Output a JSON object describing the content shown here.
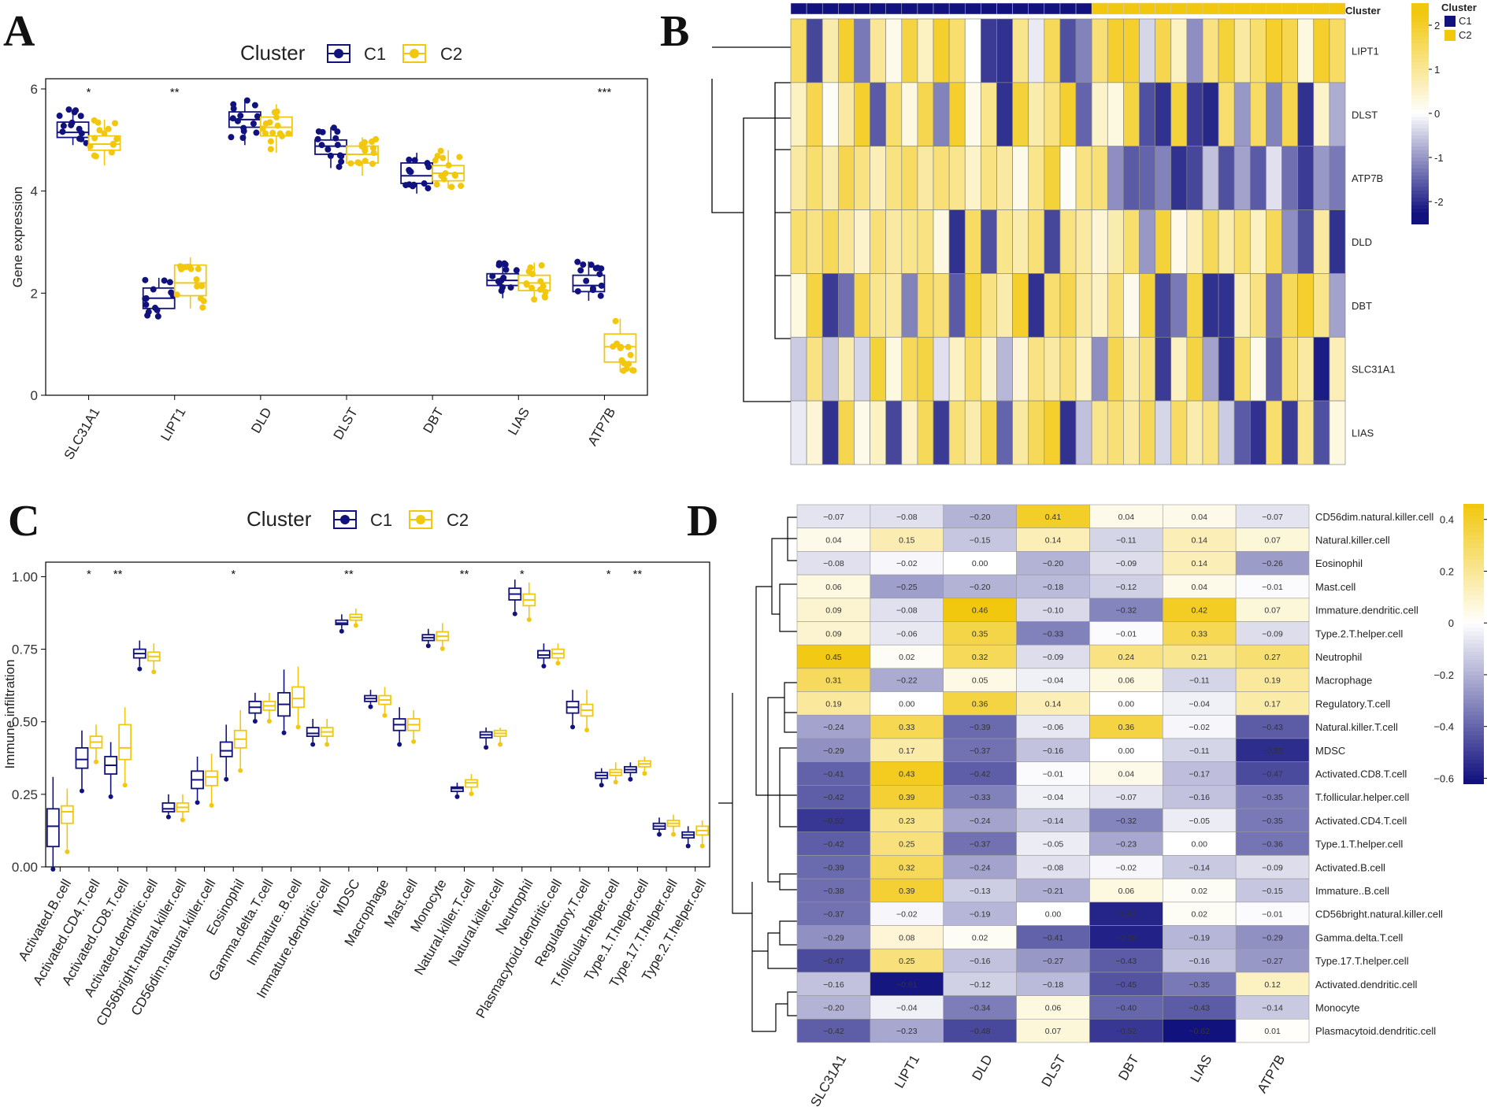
{
  "panels": {
    "A": "A",
    "B": "B",
    "C": "C",
    "D": "D"
  },
  "colors": {
    "c1": "#12127f",
    "c2": "#f2c80f",
    "white": "#ffffff"
  },
  "chart_data": [
    {
      "id": "A",
      "type": "boxplot",
      "legend_title": "Cluster",
      "legend": [
        "C1",
        "C2"
      ],
      "ylabel": "Gene expression",
      "ylim": [
        0,
        6.2
      ],
      "yticks": [
        0,
        2,
        4,
        6
      ],
      "categories": [
        "SLC31A1",
        "LIPT1",
        "DLD",
        "DLST",
        "DBT",
        "LIAS",
        "ATP7B"
      ],
      "significance": [
        "*",
        "**",
        "",
        "",
        "",
        "",
        "***"
      ],
      "series": [
        {
          "name": "C1",
          "stats": [
            [
              4.9,
              5.05,
              5.15,
              5.35,
              5.6
            ],
            [
              1.5,
              1.7,
              1.9,
              2.1,
              2.3
            ],
            [
              4.9,
              5.25,
              5.4,
              5.55,
              5.8
            ],
            [
              4.45,
              4.72,
              4.88,
              5.0,
              5.25
            ],
            [
              3.95,
              4.15,
              4.3,
              4.55,
              4.75
            ],
            [
              1.9,
              2.15,
              2.25,
              2.38,
              2.6
            ],
            [
              1.85,
              2.03,
              2.15,
              2.35,
              2.62
            ]
          ]
        },
        {
          "name": "C2",
          "stats": [
            [
              4.5,
              4.8,
              4.92,
              5.08,
              5.4
            ],
            [
              1.7,
              1.95,
              2.2,
              2.55,
              2.7
            ],
            [
              4.75,
              5.08,
              5.25,
              5.45,
              5.7
            ],
            [
              4.3,
              4.55,
              4.72,
              4.88,
              5.05
            ],
            [
              4.05,
              4.2,
              4.35,
              4.5,
              4.8
            ],
            [
              1.85,
              2.05,
              2.2,
              2.35,
              2.6
            ],
            [
              0.45,
              0.65,
              0.95,
              1.2,
              1.5
            ]
          ]
        }
      ]
    },
    {
      "id": "B",
      "type": "heatmap",
      "annotation_label": "Cluster",
      "legend_title": "Cluster",
      "legend": [
        "C1",
        "C2"
      ],
      "colorbar_ticks": [
        2,
        1,
        0,
        -1,
        -2
      ],
      "colorbar_range": [
        -2.5,
        2.5
      ],
      "rows": [
        "LIPT1",
        "DLST",
        "ATP7B",
        "DLD",
        "DBT",
        "SLC31A1",
        "LIAS"
      ],
      "n_c1": 19,
      "n_c2": 16,
      "values": [
        [
          1.5,
          -1.8,
          0.8,
          2,
          -1.3,
          1,
          0.2,
          1.8,
          0.6,
          2,
          1.4,
          0,
          -1.9,
          -2,
          1.1,
          -0.2,
          1.6,
          -1.7,
          -1.2,
          1.3,
          2,
          2,
          -0.4,
          1.7,
          0.6,
          -1.1,
          1.2,
          1.9,
          0.9,
          1.4,
          2,
          1.7,
          0.3,
          2,
          1.5
        ],
        [
          0.6,
          1.7,
          0.1,
          0.9,
          2,
          -1.6,
          1.4,
          0.3,
          1.7,
          -1.2,
          2,
          0.2,
          1.1,
          -2,
          1.9,
          0.8,
          1.2,
          2,
          -1.5,
          0.5,
          0.3,
          1.8,
          -1.7,
          -2,
          1.9,
          -1.9,
          -2.1,
          1.4,
          -1,
          1.5,
          -1.2,
          1.7,
          -2,
          0.5,
          -0.8
        ],
        [
          0.9,
          1.4,
          0.8,
          1.7,
          1.2,
          0.7,
          1.2,
          1.5,
          0.9,
          1.3,
          1.1,
          0.5,
          1.2,
          0.9,
          0.2,
          1.1,
          1.9,
          0.1,
          1.2,
          1.3,
          -1.1,
          -1.6,
          -1.5,
          -1.2,
          -2,
          -1.8,
          -0.6,
          -1.7,
          -0.9,
          -1.6,
          -0.3,
          -1.4,
          -1.9,
          -1,
          -1.3
        ],
        [
          1.4,
          1.2,
          1.6,
          1,
          0.5,
          1.3,
          0.9,
          1.1,
          1.2,
          0.3,
          -2,
          1.5,
          -1.7,
          1.1,
          0.8,
          1.3,
          -1.8,
          1.2,
          0.9,
          0.4,
          0.8,
          1.4,
          -1,
          1.9,
          0.2,
          0.7,
          1.6,
          0.8,
          1.4,
          0.6,
          1.6,
          -1.1,
          -1.7,
          0.9,
          -2
        ],
        [
          0.3,
          1.8,
          -1.9,
          -1.4,
          1.7,
          1.1,
          0.9,
          -1.2,
          1.5,
          1.3,
          -1.6,
          1.9,
          1.2,
          0.8,
          2,
          -2,
          1.4,
          1.7,
          0.9,
          0.6,
          1.3,
          0.2,
          1.9,
          -1.8,
          -1.3,
          1.8,
          -2,
          -2,
          0.7,
          1.2,
          -1.4,
          1.6,
          2,
          1.1,
          -0.9
        ],
        [
          -0.5,
          1.2,
          -0.6,
          0.8,
          -0.4,
          1.9,
          0.3,
          1.6,
          1.8,
          -0.3,
          0.6,
          1.4,
          0.5,
          -0.7,
          0.4,
          1.2,
          0.9,
          1.3,
          0.6,
          -1.1,
          1.7,
          0.8,
          1.3,
          -1.9,
          0.6,
          1.8,
          -0.9,
          -2,
          1.4,
          0.2,
          -1.6,
          1.3,
          0.9,
          -2.2,
          0.7
        ],
        [
          -0.2,
          0.4,
          -2,
          1.7,
          0.2,
          0.6,
          -1.8,
          0.5,
          1.6,
          -1.9,
          1.3,
          0.8,
          1.7,
          -1.5,
          0.9,
          1.6,
          2,
          -2,
          -0.6,
          1.1,
          1.3,
          0.9,
          1.6,
          -0.4,
          1.5,
          0.8,
          1.2,
          -0.5,
          -1.6,
          -2,
          1.4,
          -1.9,
          1.1,
          -1.7,
          0.3
        ]
      ]
    },
    {
      "id": "C",
      "type": "boxplot",
      "legend_title": "Cluster",
      "legend": [
        "C1",
        "C2"
      ],
      "ylabel": "Immune infiltration",
      "ylim": [
        0,
        1.05
      ],
      "yticks": [
        "0.00",
        "0.25",
        "0.50",
        "0.75",
        "1.00"
      ],
      "categories": [
        "Activated.B.cell",
        "Activated.CD4.T.cell",
        "Activated.CD8.T.cell",
        "Activated.dendritic.cell",
        "CD56bright.natural.killer.cell",
        "CD56dim.natural.killer.cell",
        "Eosinophil",
        "Gamma.delta.T.cell",
        "Immature..B.cell",
        "Immature.dendritic.cell",
        "MDSC",
        "Macrophage",
        "Mast.cell",
        "Monocyte",
        "Natural.killer.T.cell",
        "Natural.killer.cell",
        "Neutrophil",
        "Plasmacytoid.dendritic.cell",
        "Regulatory.T.cell",
        "T.follicular.helper.cell",
        "Type.1.T.helper.cell",
        "Type.17.T.helper.cell",
        "Type.2.T.helper.cell"
      ],
      "significance": [
        "",
        "*",
        "**",
        "",
        "",
        "",
        "*",
        "",
        "",
        "",
        "**",
        "",
        "",
        "",
        "**",
        "",
        "*",
        "",
        "",
        "*",
        "**",
        "",
        ""
      ],
      "series": [
        {
          "name": "C1",
          "stats": [
            [
              0,
              0.07,
              0.14,
              0.2,
              0.31
            ],
            [
              0.27,
              0.34,
              0.37,
              0.41,
              0.47
            ],
            [
              0.25,
              0.32,
              0.35,
              0.38,
              0.43
            ],
            [
              0.69,
              0.72,
              0.735,
              0.75,
              0.78
            ],
            [
              0.18,
              0.19,
              0.2,
              0.22,
              0.25
            ],
            [
              0.23,
              0.27,
              0.3,
              0.33,
              0.38
            ],
            [
              0.31,
              0.38,
              0.4,
              0.43,
              0.49
            ],
            [
              0.51,
              0.53,
              0.55,
              0.57,
              0.6
            ],
            [
              0.47,
              0.52,
              0.56,
              0.6,
              0.68
            ],
            [
              0.43,
              0.45,
              0.46,
              0.48,
              0.51
            ],
            [
              0.82,
              0.835,
              0.84,
              0.85,
              0.87
            ],
            [
              0.56,
              0.57,
              0.58,
              0.59,
              0.61
            ],
            [
              0.43,
              0.47,
              0.49,
              0.51,
              0.55
            ],
            [
              0.77,
              0.78,
              0.79,
              0.8,
              0.82
            ],
            [
              0.25,
              0.26,
              0.27,
              0.275,
              0.29
            ],
            [
              0.42,
              0.445,
              0.455,
              0.465,
              0.48
            ],
            [
              0.88,
              0.92,
              0.94,
              0.96,
              0.99
            ],
            [
              0.7,
              0.72,
              0.73,
              0.745,
              0.77
            ],
            [
              0.49,
              0.53,
              0.55,
              0.57,
              0.61
            ],
            [
              0.29,
              0.305,
              0.315,
              0.325,
              0.34
            ],
            [
              0.31,
              0.325,
              0.335,
              0.345,
              0.36
            ],
            [
              0.12,
              0.13,
              0.14,
              0.15,
              0.17
            ],
            [
              0.08,
              0.1,
              0.11,
              0.12,
              0.14
            ]
          ]
        },
        {
          "name": "C2",
          "stats": [
            [
              0.06,
              0.15,
              0.19,
              0.21,
              0.27
            ],
            [
              0.37,
              0.41,
              0.43,
              0.45,
              0.49
            ],
            [
              0.29,
              0.37,
              0.41,
              0.49,
              0.55
            ],
            [
              0.68,
              0.71,
              0.725,
              0.74,
              0.77
            ],
            [
              0.17,
              0.19,
              0.205,
              0.22,
              0.25
            ],
            [
              0.22,
              0.28,
              0.31,
              0.33,
              0.39
            ],
            [
              0.34,
              0.41,
              0.44,
              0.47,
              0.54
            ],
            [
              0.51,
              0.54,
              0.555,
              0.57,
              0.6
            ],
            [
              0.49,
              0.55,
              0.58,
              0.62,
              0.69
            ],
            [
              0.43,
              0.45,
              0.465,
              0.48,
              0.51
            ],
            [
              0.84,
              0.85,
              0.86,
              0.87,
              0.89
            ],
            [
              0.53,
              0.56,
              0.575,
              0.59,
              0.62
            ],
            [
              0.44,
              0.47,
              0.49,
              0.51,
              0.54
            ],
            [
              0.76,
              0.78,
              0.795,
              0.81,
              0.84
            ],
            [
              0.26,
              0.275,
              0.29,
              0.3,
              0.32
            ],
            [
              0.43,
              0.45,
              0.46,
              0.47,
              0.48
            ],
            [
              0.86,
              0.9,
              0.92,
              0.94,
              0.98
            ],
            [
              0.71,
              0.72,
              0.735,
              0.75,
              0.77
            ],
            [
              0.48,
              0.52,
              0.54,
              0.56,
              0.61
            ],
            [
              0.3,
              0.315,
              0.325,
              0.335,
              0.36
            ],
            [
              0.33,
              0.345,
              0.355,
              0.365,
              0.38
            ],
            [
              0.12,
              0.14,
              0.15,
              0.16,
              0.18
            ],
            [
              0.08,
              0.11,
              0.125,
              0.14,
              0.16
            ]
          ]
        }
      ]
    },
    {
      "id": "D",
      "type": "heatmap",
      "colorbar_ticks": [
        "0.4",
        "0.2",
        "0",
        "−0.2",
        "−0.4",
        "−0.6"
      ],
      "colorbar_range": [
        -0.62,
        0.46
      ],
      "columns": [
        "SLC31A1",
        "LIPT1",
        "DLD",
        "DLST",
        "DBT",
        "LIAS",
        "ATP7B"
      ],
      "rows": [
        "CD56dim.natural.killer.cell",
        "Natural.killer.cell",
        "Eosinophil",
        "Mast.cell",
        "Immature.dendritic.cell",
        "Type.2.T.helper.cell",
        "Neutrophil",
        "Macrophage",
        "Regulatory.T.cell",
        "Natural.killer.T.cell",
        "MDSC",
        "Activated.CD8.T.cell",
        "T.follicular.helper.cell",
        "Activated.CD4.T.cell",
        "Type.1.T.helper.cell",
        "Activated.B.cell",
        "Immature..B.cell",
        "CD56bright.natural.killer.cell",
        "Gamma.delta.T.cell",
        "Type.17.T.helper.cell",
        "Activated.dendritic.cell",
        "Monocyte",
        "Plasmacytoid.dendritic.cell"
      ],
      "values": [
        [
          -0.07,
          -0.08,
          -0.2,
          0.41,
          0.04,
          0.04,
          -0.07
        ],
        [
          0.04,
          0.15,
          -0.15,
          0.14,
          -0.11,
          0.14,
          0.07
        ],
        [
          -0.08,
          -0.02,
          -0.0,
          -0.2,
          -0.09,
          0.14,
          -0.26
        ],
        [
          0.06,
          -0.25,
          -0.2,
          -0.18,
          -0.12,
          0.04,
          -0.01
        ],
        [
          0.09,
          -0.08,
          0.46,
          -0.1,
          -0.32,
          0.42,
          0.07
        ],
        [
          0.09,
          -0.06,
          0.35,
          -0.33,
          -0.01,
          0.33,
          -0.09
        ],
        [
          0.45,
          0.02,
          0.32,
          -0.09,
          0.24,
          0.21,
          0.27
        ],
        [
          0.31,
          -0.22,
          0.05,
          -0.04,
          0.06,
          -0.11,
          0.19
        ],
        [
          0.19,
          -0.0,
          0.36,
          0.14,
          0.0,
          -0.04,
          0.17
        ],
        [
          -0.24,
          0.33,
          -0.39,
          -0.06,
          0.36,
          -0.02,
          -0.43
        ],
        [
          -0.29,
          0.17,
          -0.37,
          -0.16,
          0.0,
          -0.11,
          -0.55
        ],
        [
          -0.41,
          0.43,
          -0.42,
          -0.01,
          0.04,
          -0.17,
          -0.47
        ],
        [
          -0.42,
          0.39,
          -0.33,
          -0.04,
          -0.07,
          -0.16,
          -0.35
        ],
        [
          -0.52,
          0.23,
          -0.24,
          -0.14,
          -0.32,
          -0.05,
          -0.35
        ],
        [
          -0.42,
          0.25,
          -0.37,
          -0.05,
          -0.23,
          0.0,
          -0.36
        ],
        [
          -0.39,
          0.32,
          -0.24,
          -0.08,
          -0.02,
          -0.14,
          -0.09
        ],
        [
          -0.38,
          0.39,
          -0.13,
          -0.21,
          0.06,
          0.02,
          -0.15
        ],
        [
          -0.37,
          -0.02,
          -0.19,
          -0.0,
          -0.57,
          0.02,
          -0.01
        ],
        [
          -0.29,
          0.08,
          0.02,
          -0.41,
          -0.58,
          -0.19,
          -0.29
        ],
        [
          -0.47,
          0.25,
          -0.16,
          -0.27,
          -0.43,
          -0.16,
          -0.27
        ],
        [
          -0.16,
          -0.61,
          -0.12,
          -0.18,
          -0.45,
          -0.35,
          0.12
        ],
        [
          -0.2,
          -0.04,
          -0.34,
          0.06,
          -0.4,
          -0.43,
          -0.14
        ],
        [
          -0.42,
          -0.23,
          -0.48,
          0.07,
          -0.52,
          -0.62,
          0.01
        ]
      ]
    }
  ]
}
